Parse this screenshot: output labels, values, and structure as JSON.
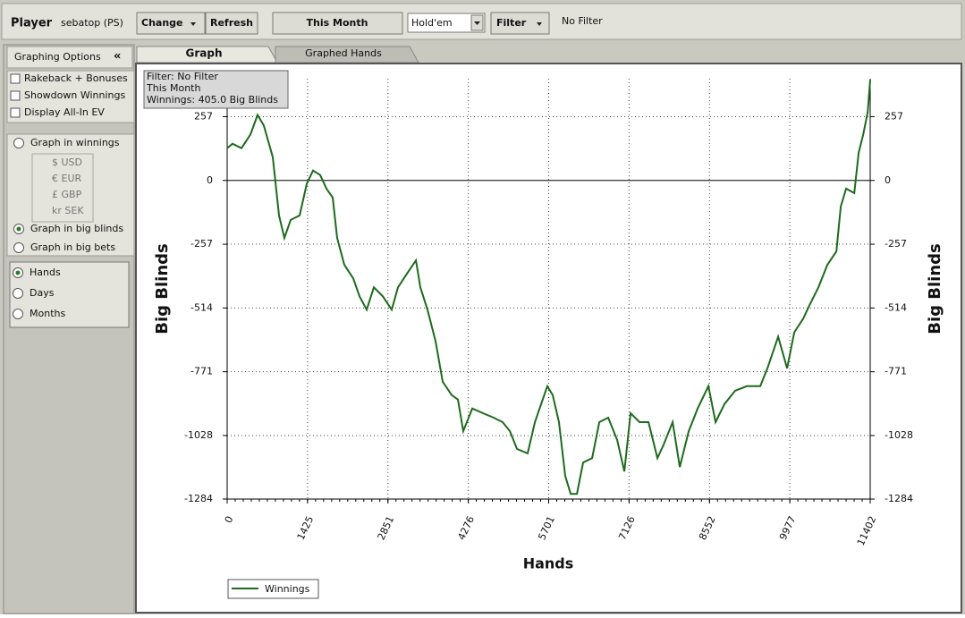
{
  "toolbar": {
    "player_label": "Player",
    "player_name": "sebatop (PS)",
    "change": "Change",
    "refresh": "Refresh",
    "period": "This Month",
    "game": "Hold'em",
    "filter": "Filter",
    "filter_status": "No Filter"
  },
  "options": {
    "title": "Graphing Options",
    "collapse": "«",
    "checkboxes": [
      "Rakeback + Bonuses",
      "Showdown Winnings",
      "Display All-In EV"
    ],
    "graph_in": [
      "Graph in winnings",
      "Graph in big blinds",
      "Graph in big bets"
    ],
    "currencies": [
      "$ USD",
      "€ EUR",
      "£ GBP",
      "kr SEK"
    ],
    "x_axis": [
      "Hands",
      "Days",
      "Months"
    ]
  },
  "tabs": [
    "Graph",
    "Graphed Hands"
  ],
  "chart_data": {
    "type": "line",
    "info": [
      "Filter: No Filter",
      "This Month",
      "Winnings: 405.0 Big Blinds"
    ],
    "xlabel": "Hands",
    "ylabel": "Big Blinds",
    "x": [
      0,
      95,
      254,
      412,
      539,
      650,
      809,
      920,
      1015,
      1126,
      1284,
      1411,
      1523,
      1649,
      1760,
      1872,
      1951,
      2078,
      2236,
      2347,
      2474,
      2601,
      2760,
      2918,
      3029,
      3188,
      3347,
      3426,
      3553,
      3695,
      3822,
      3981,
      4092,
      4187,
      4346,
      4536,
      4726,
      4885,
      5012,
      5139,
      5329,
      5456,
      5567,
      5678,
      5773,
      5884,
      5995,
      6091,
      6202,
      6312,
      6471,
      6598,
      6757,
      6915,
      7042,
      7153,
      7312,
      7471,
      7629,
      7740,
      7899,
      8026,
      8184,
      8343,
      8533,
      8660,
      8819,
      9009,
      9215,
      9453,
      9580,
      9770,
      9929,
      10056,
      10215,
      10326,
      10484,
      10643,
      10802,
      10881,
      10976,
      11119,
      11198,
      11278,
      11357,
      11402
    ],
    "series": [
      {
        "name": "Winnings",
        "color": "#1e6a1e",
        "values": [
          130,
          148,
          130,
          185,
          264,
          221,
          94,
          -141,
          -232,
          -159,
          -141,
          -14,
          40,
          22,
          -33,
          -69,
          -232,
          -340,
          -395,
          -467,
          -521,
          -431,
          -467,
          -521,
          -431,
          -376,
          -322,
          -431,
          -521,
          -648,
          -811,
          -865,
          -883,
          -1010,
          -919,
          -938,
          -956,
          -974,
          -1010,
          -1082,
          -1100,
          -974,
          -901,
          -829,
          -865,
          -974,
          -1191,
          -1263,
          -1263,
          -1137,
          -1119,
          -974,
          -956,
          -1046,
          -1173,
          -938,
          -974,
          -974,
          -1119,
          -1064,
          -974,
          -1155,
          -1010,
          -919,
          -829,
          -974,
          -901,
          -847,
          -829,
          -829,
          -757,
          -630,
          -757,
          -612,
          -557,
          -503,
          -431,
          -340,
          -286,
          -105,
          -33,
          -51,
          112,
          185,
          275,
          405
        ]
      }
    ],
    "xlim": [
      0,
      11402
    ],
    "ylim": [
      -1284,
      410
    ],
    "xticks": [
      0,
      1425,
      2851,
      4276,
      5701,
      7126,
      8552,
      9977,
      11402
    ],
    "yticks": [
      -1284,
      -1028,
      -771,
      -514,
      -257,
      0,
      257
    ],
    "grid": true
  }
}
